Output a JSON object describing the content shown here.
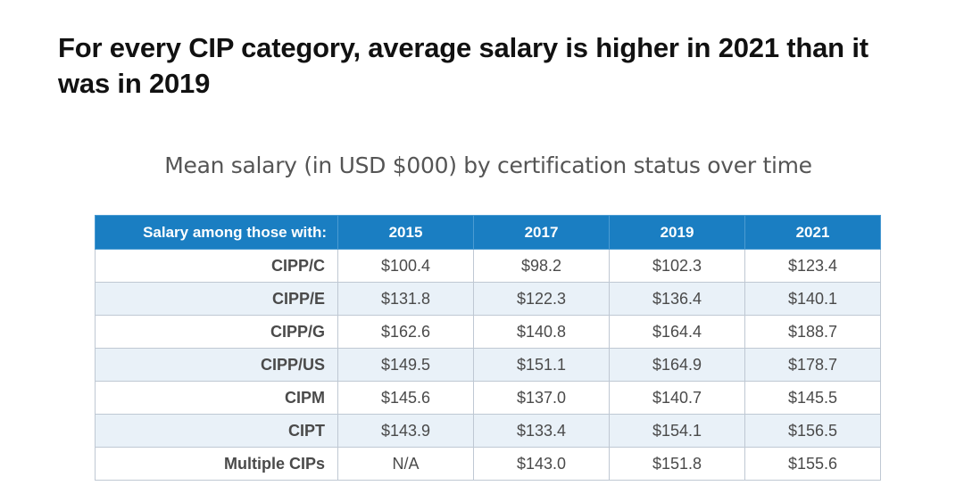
{
  "headline": "For every CIP category, average salary is higher in 2021 than it was in 2019",
  "chart_data": {
    "type": "table",
    "title": "Mean salary (in USD $000) by certification status over time",
    "header_label": "Salary among those with:",
    "columns": [
      "2015",
      "2017",
      "2019",
      "2021"
    ],
    "rows": [
      {
        "label": "CIPP/C",
        "cells": [
          "$100.4",
          "$98.2",
          "$102.3",
          "$123.4"
        ]
      },
      {
        "label": "CIPP/E",
        "cells": [
          "$131.8",
          "$122.3",
          "$136.4",
          "$140.1"
        ]
      },
      {
        "label": "CIPP/G",
        "cells": [
          "$162.6",
          "$140.8",
          "$164.4",
          "$188.7"
        ]
      },
      {
        "label": "CIPP/US",
        "cells": [
          "$149.5",
          "$151.1",
          "$164.9",
          "$178.7"
        ]
      },
      {
        "label": "CIPM",
        "cells": [
          "$145.6",
          "$137.0",
          "$140.7",
          "$145.5"
        ]
      },
      {
        "label": "CIPT",
        "cells": [
          "$143.9",
          "$133.4",
          "$154.1",
          "$156.5"
        ]
      },
      {
        "label": "Multiple CIPs",
        "cells": [
          "N/A",
          "$143.0",
          "$151.8",
          "$155.6"
        ]
      }
    ]
  },
  "colors": {
    "header_bg": "#1a7ec2",
    "header_text": "#ffffff",
    "alt_row_bg": "#e9f1f8",
    "border": "#bfc8d3",
    "cell_text": "#4a4a4a"
  }
}
